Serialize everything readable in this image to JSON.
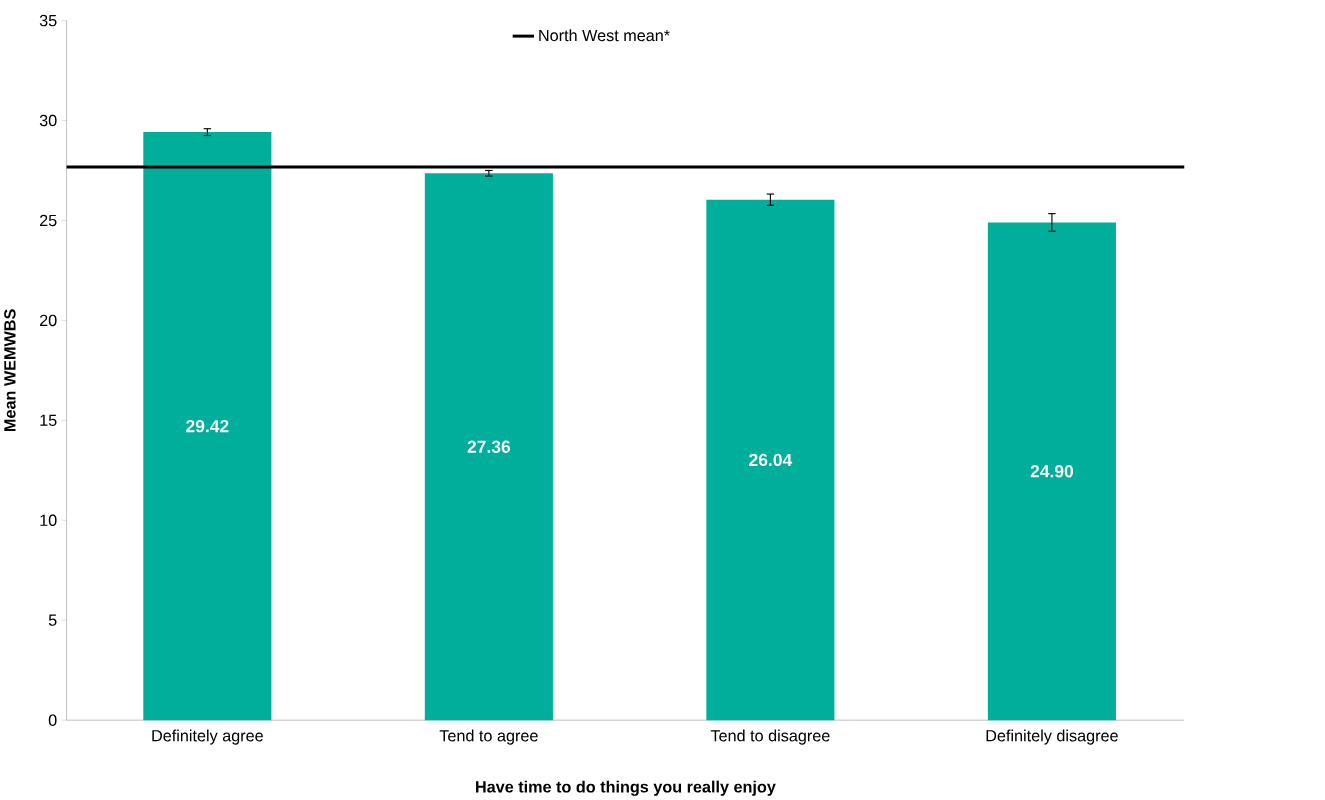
{
  "chart_data": {
    "type": "bar",
    "xlabel": "Have time to do things you really enjoy",
    "ylabel": "Mean WEMWBS",
    "categories": [
      "Definitely agree",
      "Tend to agree",
      "Tend to disagree",
      "Definitely disagree"
    ],
    "values": [
      29.42,
      27.36,
      26.04,
      24.9
    ],
    "errors": [
      0.17,
      0.14,
      0.28,
      0.44
    ],
    "value_labels": [
      "29.42",
      "27.36",
      "26.04",
      "24.90"
    ],
    "color": "#00ae9c",
    "ylim": [
      0,
      35
    ],
    "yticks": [
      0,
      5,
      10,
      15,
      20,
      25,
      30,
      35
    ],
    "ref_lines": [
      {
        "axis": "y",
        "value": 27.68,
        "label": "North West mean*",
        "color": "#000000",
        "line_style": "solid"
      }
    ],
    "legend": "top",
    "grid": false
  }
}
